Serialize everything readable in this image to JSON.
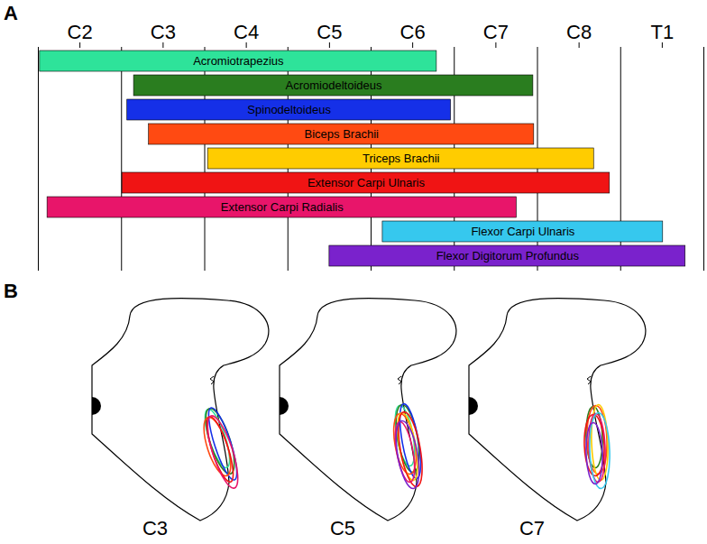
{
  "chart_data": {
    "type": "bar",
    "title": "A",
    "orientation": "horizontal",
    "tick_labels": "x",
    "grid": true,
    "categories": [
      "Acromiotrapezius",
      "Acromiodeltoideus",
      "Spinodeltoideus",
      "Biceps Brachii",
      "Triceps Brachii",
      "Extensor Carpi Ulnaris",
      "Extensor Carpi Radialis",
      "Flexor Carpi Ulnaris",
      "Flexor Digitorum Profundus"
    ],
    "values": [
      [
        2.02,
        6.79
      ],
      [
        3.15,
        7.95
      ],
      [
        3.07,
        6.96
      ],
      [
        3.33,
        7.96
      ],
      [
        4.04,
        8.68
      ],
      [
        3.01,
        8.87
      ],
      [
        2.11,
        7.75
      ],
      [
        6.14,
        9.51
      ],
      [
        5.5,
        9.78
      ]
    ],
    "colors": [
      "#2ee39a",
      "#2a7d1f",
      "#1530e8",
      "#ff4a12",
      "#ffcc00",
      "#f01414",
      "#e8156a",
      "#36c8ee",
      "#7a22cc"
    ],
    "xlim": [
      2,
      10
    ],
    "xticks": [
      {
        "value": 2.5,
        "label": "C2"
      },
      {
        "value": 3.5,
        "label": "C3"
      },
      {
        "value": 4.5,
        "label": "C4"
      },
      {
        "value": 5.5,
        "label": "C5"
      },
      {
        "value": 6.5,
        "label": "C6"
      },
      {
        "value": 7.5,
        "label": "C7"
      },
      {
        "value": 8.5,
        "label": "C8"
      },
      {
        "value": 9.5,
        "label": "T1"
      }
    ]
  },
  "diagram": {
    "label": "B",
    "sections": [
      "C3",
      "C5",
      "C7"
    ]
  }
}
